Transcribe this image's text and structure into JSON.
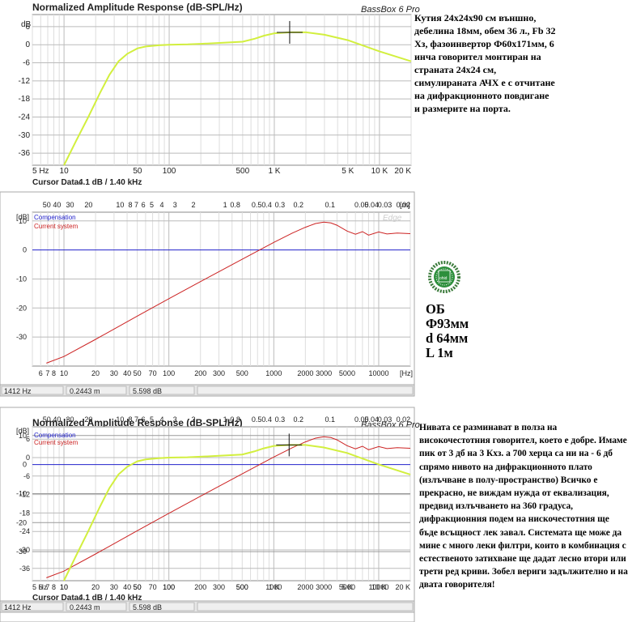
{
  "panel_top": {
    "title": "Normalized Amplitude Response (dB-SPL/Hz)",
    "brand": "BassBox 6 Pro",
    "y_unit": "dB",
    "cursor_label": "Cursor Data:",
    "cursor_value": "4.1 dB / 1.40 kHz",
    "colors": {
      "curve": "#d2ef3e",
      "grid": "#c8c8c8",
      "frame": "#888888"
    }
  },
  "panel_mid": {
    "y_unit": "[dB]",
    "x_unit": "[Hz]",
    "top_unit": "[m]",
    "watermark": "Edge",
    "legend": [
      {
        "label": "Compensation",
        "color": "#2222cc"
      },
      {
        "label": "Current system",
        "color": "#cc2222"
      }
    ],
    "status": {
      "freq": "1412 Hz",
      "dist": "0.2443 m",
      "level": "5.598 dB"
    }
  },
  "panel_bot": {
    "title": "Normalized Amplitude Response (dB-SPL/Hz)",
    "brand": "BassBox 6 Pro",
    "cursor_label": "Cursor Data:",
    "cursor_value": "4.1 dB / 1.40 kHz",
    "status": {
      "freq": "1412 Hz",
      "dist": "0.2443 m",
      "level": "5.598 dB"
    }
  },
  "chart_data": [
    {
      "type": "line",
      "title": "Normalized Amplitude Response (dB-SPL/Hz)",
      "xlabel": "",
      "ylabel": "dB",
      "x_scale": "log",
      "xlim": [
        5,
        20000
      ],
      "ylim": [
        -40,
        10
      ],
      "x_ticks": [
        "5 Hz",
        "10",
        "50",
        "100",
        "500",
        "1 K",
        "5 K",
        "10 K",
        "20 K"
      ],
      "y_ticks": [
        "6",
        "0",
        "-6",
        "-12",
        "-18",
        "-24",
        "-30",
        "-36"
      ],
      "series": [
        {
          "x": [
            10,
            13,
            17,
            22,
            27,
            33,
            40,
            50,
            60,
            80,
            100,
            150,
            200,
            300,
            500,
            650,
            800,
            1000,
            1400,
            2000,
            3000,
            5000,
            10000,
            20000
          ],
          "y": [
            -40,
            -32,
            -24,
            -16,
            -10,
            -5.5,
            -3,
            -1.2,
            -0.6,
            -0.2,
            0,
            0.1,
            0.3,
            0.6,
            1,
            2,
            3,
            3.8,
            4.1,
            4.1,
            3.3,
            1.5,
            -2.2,
            -5.5
          ]
        }
      ],
      "cursor": {
        "x": 1400,
        "y": 4.1
      }
    },
    {
      "type": "line",
      "xlabel": "",
      "ylabel": "[dB]",
      "x_scale": "log",
      "xlim": [
        5,
        20000
      ],
      "ylim": [
        -40,
        13
      ],
      "x_ticks": [
        "6",
        "7",
        "8",
        "10",
        "20",
        "30",
        "40",
        "50",
        "70",
        "100",
        "200",
        "300",
        "500",
        "1000",
        "2000",
        "3000",
        "5000",
        "10000"
      ],
      "y_ticks": [
        "10",
        "0",
        "-10",
        "-20",
        "-30"
      ],
      "top_ticks": [
        "50",
        "40",
        "30",
        "20",
        "10",
        "8",
        "7",
        "6",
        "5",
        "4",
        "3",
        "2",
        "1",
        "0.8",
        "0.5",
        "0.4",
        "0.3",
        "0.2",
        "0.1",
        "0.05",
        "0.04",
        "0.03",
        "0.02"
      ],
      "series": [
        {
          "name": "Compensation",
          "x": [
            5,
            20000
          ],
          "y": [
            0,
            0
          ]
        },
        {
          "name": "Current system",
          "x": [
            6.8,
            10,
            20,
            50,
            100,
            200,
            500,
            1000,
            1500,
            2000,
            2500,
            3000,
            3500,
            4000,
            5000,
            6000,
            7000,
            8000,
            10000,
            12000,
            15000,
            20000
          ],
          "y": [
            -39,
            -36.7,
            -30.8,
            -22.8,
            -16.8,
            -10.9,
            -3.2,
            2.6,
            5.8,
            7.8,
            9.1,
            9.6,
            9.3,
            8.5,
            6.5,
            5.4,
            6.3,
            5.1,
            6.2,
            5.5,
            5.8,
            5.6
          ]
        }
      ]
    }
  ],
  "notes": {
    "top": "Кутия 24x24x90 см външно, дебелина 18мм, обем 36 л., Fb 32 Хз, фазоинвертор Ф60x171мм, 6 инча говорител монтиран на страната 24x24 см, симулираната АЧХ е с отчитане на дифракционното повдигане и размерите на порта.",
    "ob_lines": [
      "ОБ",
      "Ф93мм",
      "d 64мм",
      "L 1м"
    ],
    "bottom": "Нивата се разминават в полза на високочестотния говорител, което е добре. Имаме пик от 3 дб на 3 Кхз. а 700 херца са ни на - 6 дб спрямо нивото на дифракционното плато (излъчване в полу-пространство) Всичко е прекрасно, не виждам нужда от еквализация, предвид излъчването на 360 градуса, дифракционния подем на нискочестотния ще бъде всъщност лек завал. Системата ще може да мине с много леки филтри, които в комбинация с естественото затихване ще дадат лесно втори или трети ред криви. Зобел вериги задължително и на двата говорителя!"
  }
}
